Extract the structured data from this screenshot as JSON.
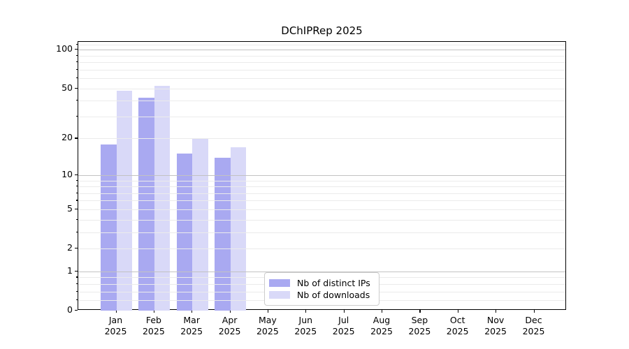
{
  "chart_data": {
    "type": "bar",
    "title": "DChIPRep 2025",
    "year_label": "2025",
    "categories": [
      "Jan",
      "Feb",
      "Mar",
      "Apr",
      "May",
      "Jun",
      "Jul",
      "Aug",
      "Sep",
      "Oct",
      "Nov",
      "Dec"
    ],
    "series": [
      {
        "name": "Nb of distinct IPs",
        "color": "#a9a9f1",
        "values": [
          18,
          42,
          15,
          14,
          null,
          null,
          null,
          null,
          null,
          null,
          null,
          null
        ]
      },
      {
        "name": "Nb of downloads",
        "color": "#d9d9f8",
        "values": [
          48,
          52,
          20,
          17,
          null,
          null,
          null,
          null,
          null,
          null,
          null,
          null
        ]
      }
    ],
    "yscale": "log1p",
    "ylim": [
      0,
      115
    ],
    "yticks": [
      0,
      1,
      2,
      5,
      10,
      20,
      50,
      100
    ],
    "grid_major": [
      1,
      10,
      100
    ],
    "grid_minor": [
      0.2,
      0.4,
      0.6,
      0.8,
      2,
      3,
      4,
      5,
      6,
      7,
      8,
      9,
      20,
      30,
      40,
      50,
      60,
      70,
      80,
      90,
      110
    ],
    "legend_position": "lower-center inside plot",
    "grid": "on",
    "colors": {
      "major_grid": "#c2c2c2",
      "minor_grid": "#ebebeb",
      "axis": "#000000"
    }
  }
}
